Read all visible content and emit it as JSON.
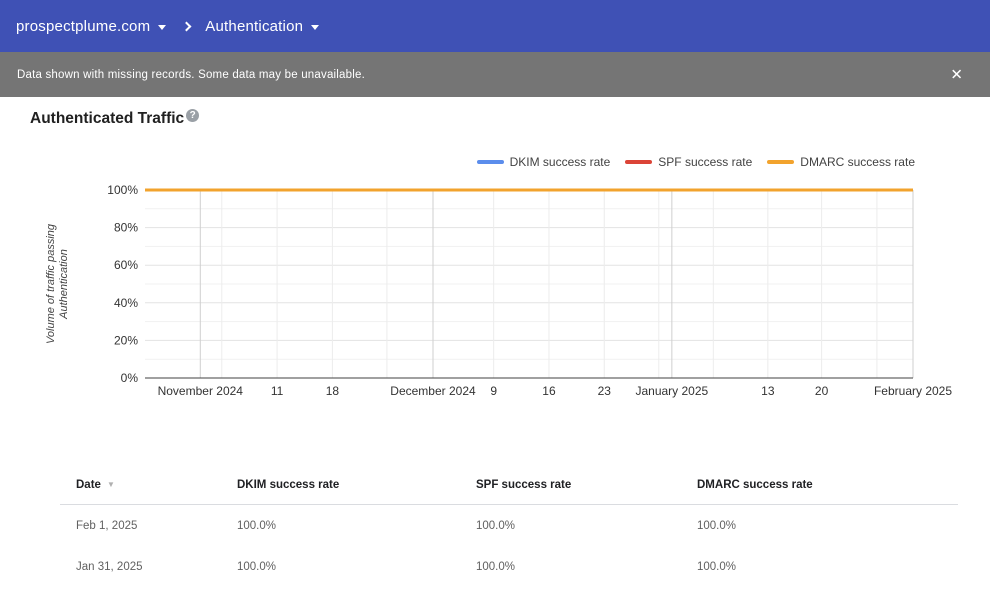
{
  "topbar": {
    "domain": "prospectplume.com",
    "section": "Authentication",
    "bg_color": "#3F51B5"
  },
  "notice": {
    "message": "Data shown with missing records. Some data may be unavailable.",
    "close_icon": "✕",
    "bg_color": "#757575"
  },
  "content": {
    "title": "Authenticated Traffic",
    "help_icon": "?"
  },
  "chart_data": {
    "type": "line",
    "title": "Authenticated Traffic",
    "legend_position": "top-right",
    "grid": true,
    "categories": [
      "November 2024",
      "11",
      "18",
      "December 2024",
      "9",
      "16",
      "23",
      "January 2025",
      "13",
      "20",
      "February 2025"
    ],
    "series": [
      {
        "name": "DKIM success rate",
        "color": "#5B8DEC",
        "values": [
          100,
          100,
          100,
          100,
          100,
          100,
          100,
          100,
          100,
          100,
          100
        ]
      },
      {
        "name": "SPF success rate",
        "color": "#DB4437",
        "values": [
          100,
          100,
          100,
          100,
          100,
          100,
          100,
          100,
          100,
          100,
          100
        ]
      },
      {
        "name": "DMARC success rate",
        "color": "#F2A32D",
        "values": [
          100,
          100,
          100,
          100,
          100,
          100,
          100,
          100,
          100,
          100,
          100
        ]
      }
    ],
    "y_axis": {
      "label": "Volume of traffic passing Authentication",
      "label_lines": [
        "Volume of traffic passing",
        "Authentication"
      ],
      "range": [
        0,
        100
      ],
      "ticks": [
        {
          "value": 0,
          "label": "0%"
        },
        {
          "value": 20,
          "label": "20%"
        },
        {
          "value": 40,
          "label": "40%"
        },
        {
          "value": 60,
          "label": "60%"
        },
        {
          "value": 80,
          "label": "80%"
        },
        {
          "value": 100,
          "label": "100%"
        }
      ]
    },
    "x_axis": {
      "ticks": [
        {
          "pos": 0.072,
          "label": "November 2024",
          "month": true
        },
        {
          "pos": 0.1,
          "label": null,
          "month": false
        },
        {
          "pos": 0.172,
          "label": "11",
          "month": false
        },
        {
          "pos": 0.244,
          "label": "18",
          "month": false
        },
        {
          "pos": 0.315,
          "label": null,
          "month": false
        },
        {
          "pos": 0.375,
          "label": "December 2024",
          "month": true
        },
        {
          "pos": 0.454,
          "label": "9",
          "month": false
        },
        {
          "pos": 0.526,
          "label": "16",
          "month": false
        },
        {
          "pos": 0.598,
          "label": "23",
          "month": false
        },
        {
          "pos": 0.669,
          "label": null,
          "month": false
        },
        {
          "pos": 0.686,
          "label": "January 2025",
          "month": true
        },
        {
          "pos": 0.74,
          "label": null,
          "month": false
        },
        {
          "pos": 0.811,
          "label": "13",
          "month": false
        },
        {
          "pos": 0.881,
          "label": "20",
          "month": false
        },
        {
          "pos": 0.953,
          "label": null,
          "month": false
        },
        {
          "pos": 1.0,
          "label": "February 2025",
          "month": true
        }
      ]
    },
    "colors": {
      "grid_minor": "#f1f1f1",
      "grid_major": "#e3e3e3",
      "grid_week": "#ececec",
      "grid_month": "#cfcfcf",
      "axis": "#424242"
    }
  },
  "table": {
    "sort_icon": "▼",
    "columns": [
      {
        "key": "date",
        "label": "Date",
        "sorted": true
      },
      {
        "key": "dkim",
        "label": "DKIM success rate",
        "sorted": false
      },
      {
        "key": "spf",
        "label": "SPF success rate",
        "sorted": false
      },
      {
        "key": "dmarc",
        "label": "DMARC success rate",
        "sorted": false
      }
    ],
    "rows": [
      [
        "Feb 1, 2025",
        "100.0%",
        "100.0%",
        "100.0%"
      ],
      [
        "Jan 31, 2025",
        "100.0%",
        "100.0%",
        "100.0%"
      ]
    ]
  }
}
